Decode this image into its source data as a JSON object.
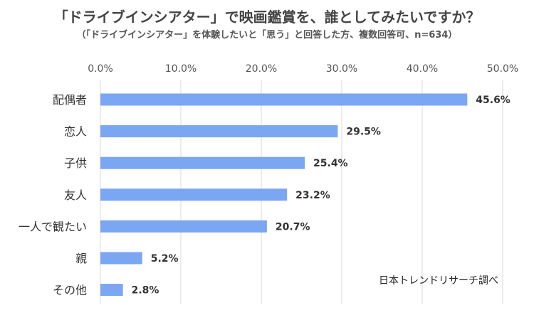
{
  "header": {
    "title": "「ドライブインシアター」で映画鑑賞を、誰としてみたいですか？",
    "subtitle": "（「ドライブインシアター」を体験したいと「思う」と回答した方、複数回答可、n=634）"
  },
  "source": "日本トレンドリサーチ調べ",
  "chart_data": {
    "type": "bar",
    "orientation": "horizontal",
    "categories": [
      "配偶者",
      "恋人",
      "子供",
      "友人",
      "一人で観たい",
      "親",
      "その他"
    ],
    "values": [
      45.6,
      29.5,
      25.4,
      23.2,
      20.7,
      5.2,
      2.8
    ],
    "value_labels": [
      "45.6%",
      "29.5%",
      "25.4%",
      "23.2%",
      "20.7%",
      "5.2%",
      "2.8%"
    ],
    "xticks": [
      "0.0%",
      "10.0%",
      "20.0%",
      "30.0%",
      "40.0%",
      "50.0%"
    ],
    "xlim": [
      0,
      50
    ],
    "xaxis_position": "top",
    "grid": true,
    "legend": "none",
    "colors": {
      "bar": "#7aa6f2",
      "grid": "#d9d9d9",
      "tick_label": "#555555",
      "category_label": "#333333",
      "value_label": "#333333"
    }
  }
}
